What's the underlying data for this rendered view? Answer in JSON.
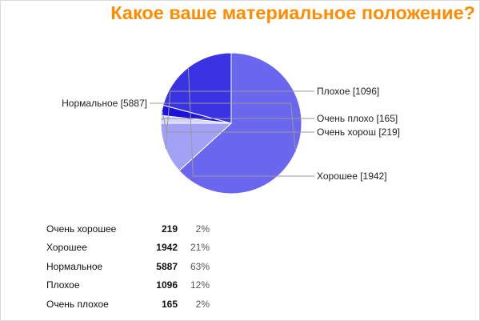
{
  "title": "Какое ваше материальное положение?",
  "colors": {
    "title": "#ff8c00",
    "slice_label_line": "#999999",
    "slice_border": "#ffffff"
  },
  "chart_data": {
    "type": "pie",
    "slices": [
      {
        "name": "Нормальное",
        "value": 5887,
        "color": "#6b66ee",
        "label": "Нормальное [5887]"
      },
      {
        "name": "Плохое",
        "value": 1096,
        "color": "#a3a1f5",
        "label": "Плохое [1096]"
      },
      {
        "name": "Очень плохо",
        "value": 165,
        "color": "#d5d4fa",
        "label": "Очень плохо [165]"
      },
      {
        "name": "Очень хорош",
        "value": 219,
        "color": "#1d12d9",
        "label": "Очень хорош [219]"
      },
      {
        "name": "Хорошее",
        "value": 1942,
        "color": "#3a33e4",
        "label": "Хорошее [1942]"
      }
    ]
  },
  "summary_table": {
    "rows": [
      {
        "category": "Очень хорошее",
        "count": "219",
        "percent": "2%"
      },
      {
        "category": "Хорошее",
        "count": "1942",
        "percent": "21%"
      },
      {
        "category": "Нормальное",
        "count": "5887",
        "percent": "63%"
      },
      {
        "category": "Плохое",
        "count": "1096",
        "percent": "12%"
      },
      {
        "category": "Очень плохое",
        "count": "165",
        "percent": "2%"
      }
    ]
  }
}
